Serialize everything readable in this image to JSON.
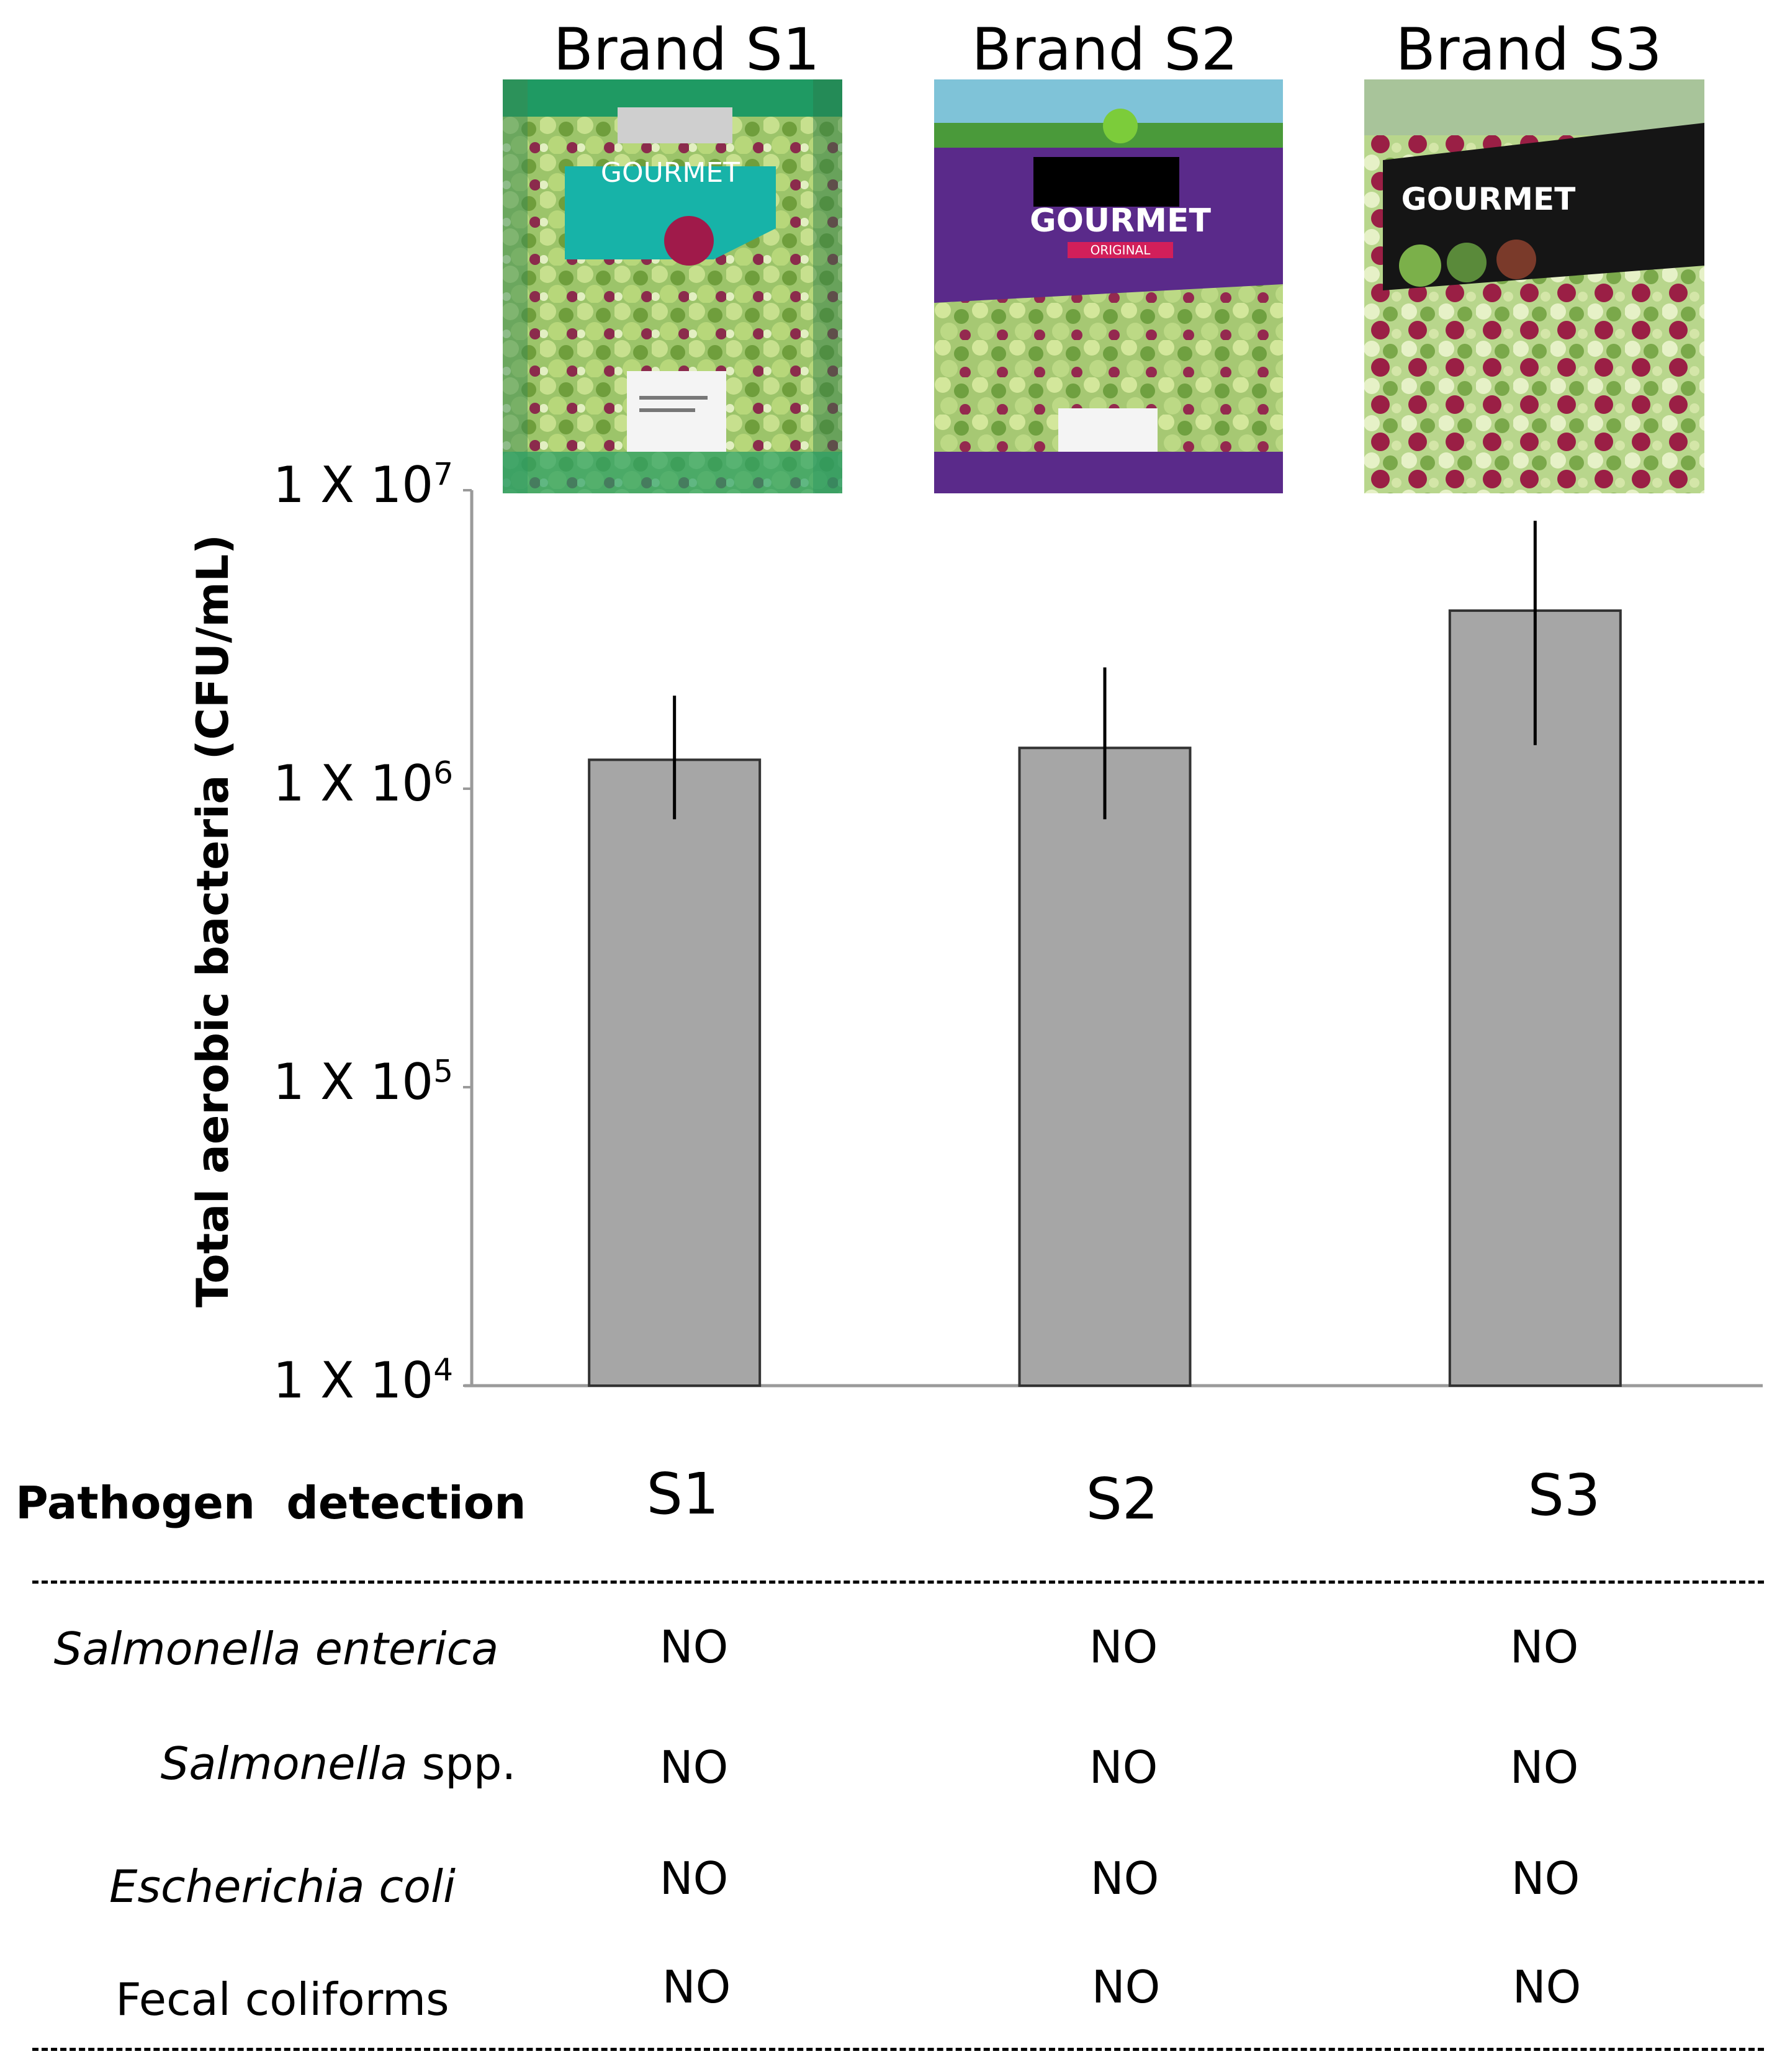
{
  "brands": [
    {
      "label": "Brand S1",
      "pkg_text": "GOURMET",
      "accent": "#1a9a6a",
      "label_color": "#17b3a8"
    },
    {
      "label": "Brand S2",
      "pkg_text": "GOURMET",
      "subtext": "ORIGINAL",
      "accent": "#5a2a8a",
      "label_color": "#5a2a8a"
    },
    {
      "label": "Brand S3",
      "pkg_text": "GOURMET",
      "accent": "#1a1a1a",
      "label_color": "#111111"
    }
  ],
  "chart_data": {
    "type": "bar",
    "ylabel": "Total aerobic bacteria (CFU/mL)",
    "yscale": "log",
    "ylim": [
      10000,
      10000000
    ],
    "yticks": [
      {
        "value": 10000,
        "base": "1 X 10",
        "exp": "4"
      },
      {
        "value": 100000,
        "base": "1 X 10",
        "exp": "5"
      },
      {
        "value": 1000000,
        "base": "1 X 10",
        "exp": "6"
      },
      {
        "value": 10000000,
        "base": "1 X 10",
        "exp": "7"
      }
    ],
    "categories": [
      "S1",
      "S2",
      "S3"
    ],
    "values": [
      1250000,
      1370000,
      3950000
    ],
    "error_low": [
      790000,
      790000,
      1400000
    ],
    "error_high": [
      2050000,
      2550000,
      7900000
    ],
    "bar_color": "#a6a6a6"
  },
  "table": {
    "row_header": "Pathogen  detection",
    "columns": [
      "S1",
      "S2",
      "S3"
    ],
    "rows": [
      {
        "name_italic": "Salmonella enterica",
        "name_plain": "",
        "values": [
          "NO",
          "NO",
          "NO"
        ]
      },
      {
        "name_italic": "Salmonella",
        "name_plain": " spp.",
        "values": [
          "NO",
          "NO",
          "NO"
        ]
      },
      {
        "name_italic": "Escherichia coli",
        "name_plain": "",
        "values": [
          "NO",
          "NO",
          "NO"
        ]
      },
      {
        "name_italic": "",
        "name_plain": "Fecal coliforms",
        "values": [
          "NO",
          "NO",
          "NO"
        ]
      }
    ]
  }
}
